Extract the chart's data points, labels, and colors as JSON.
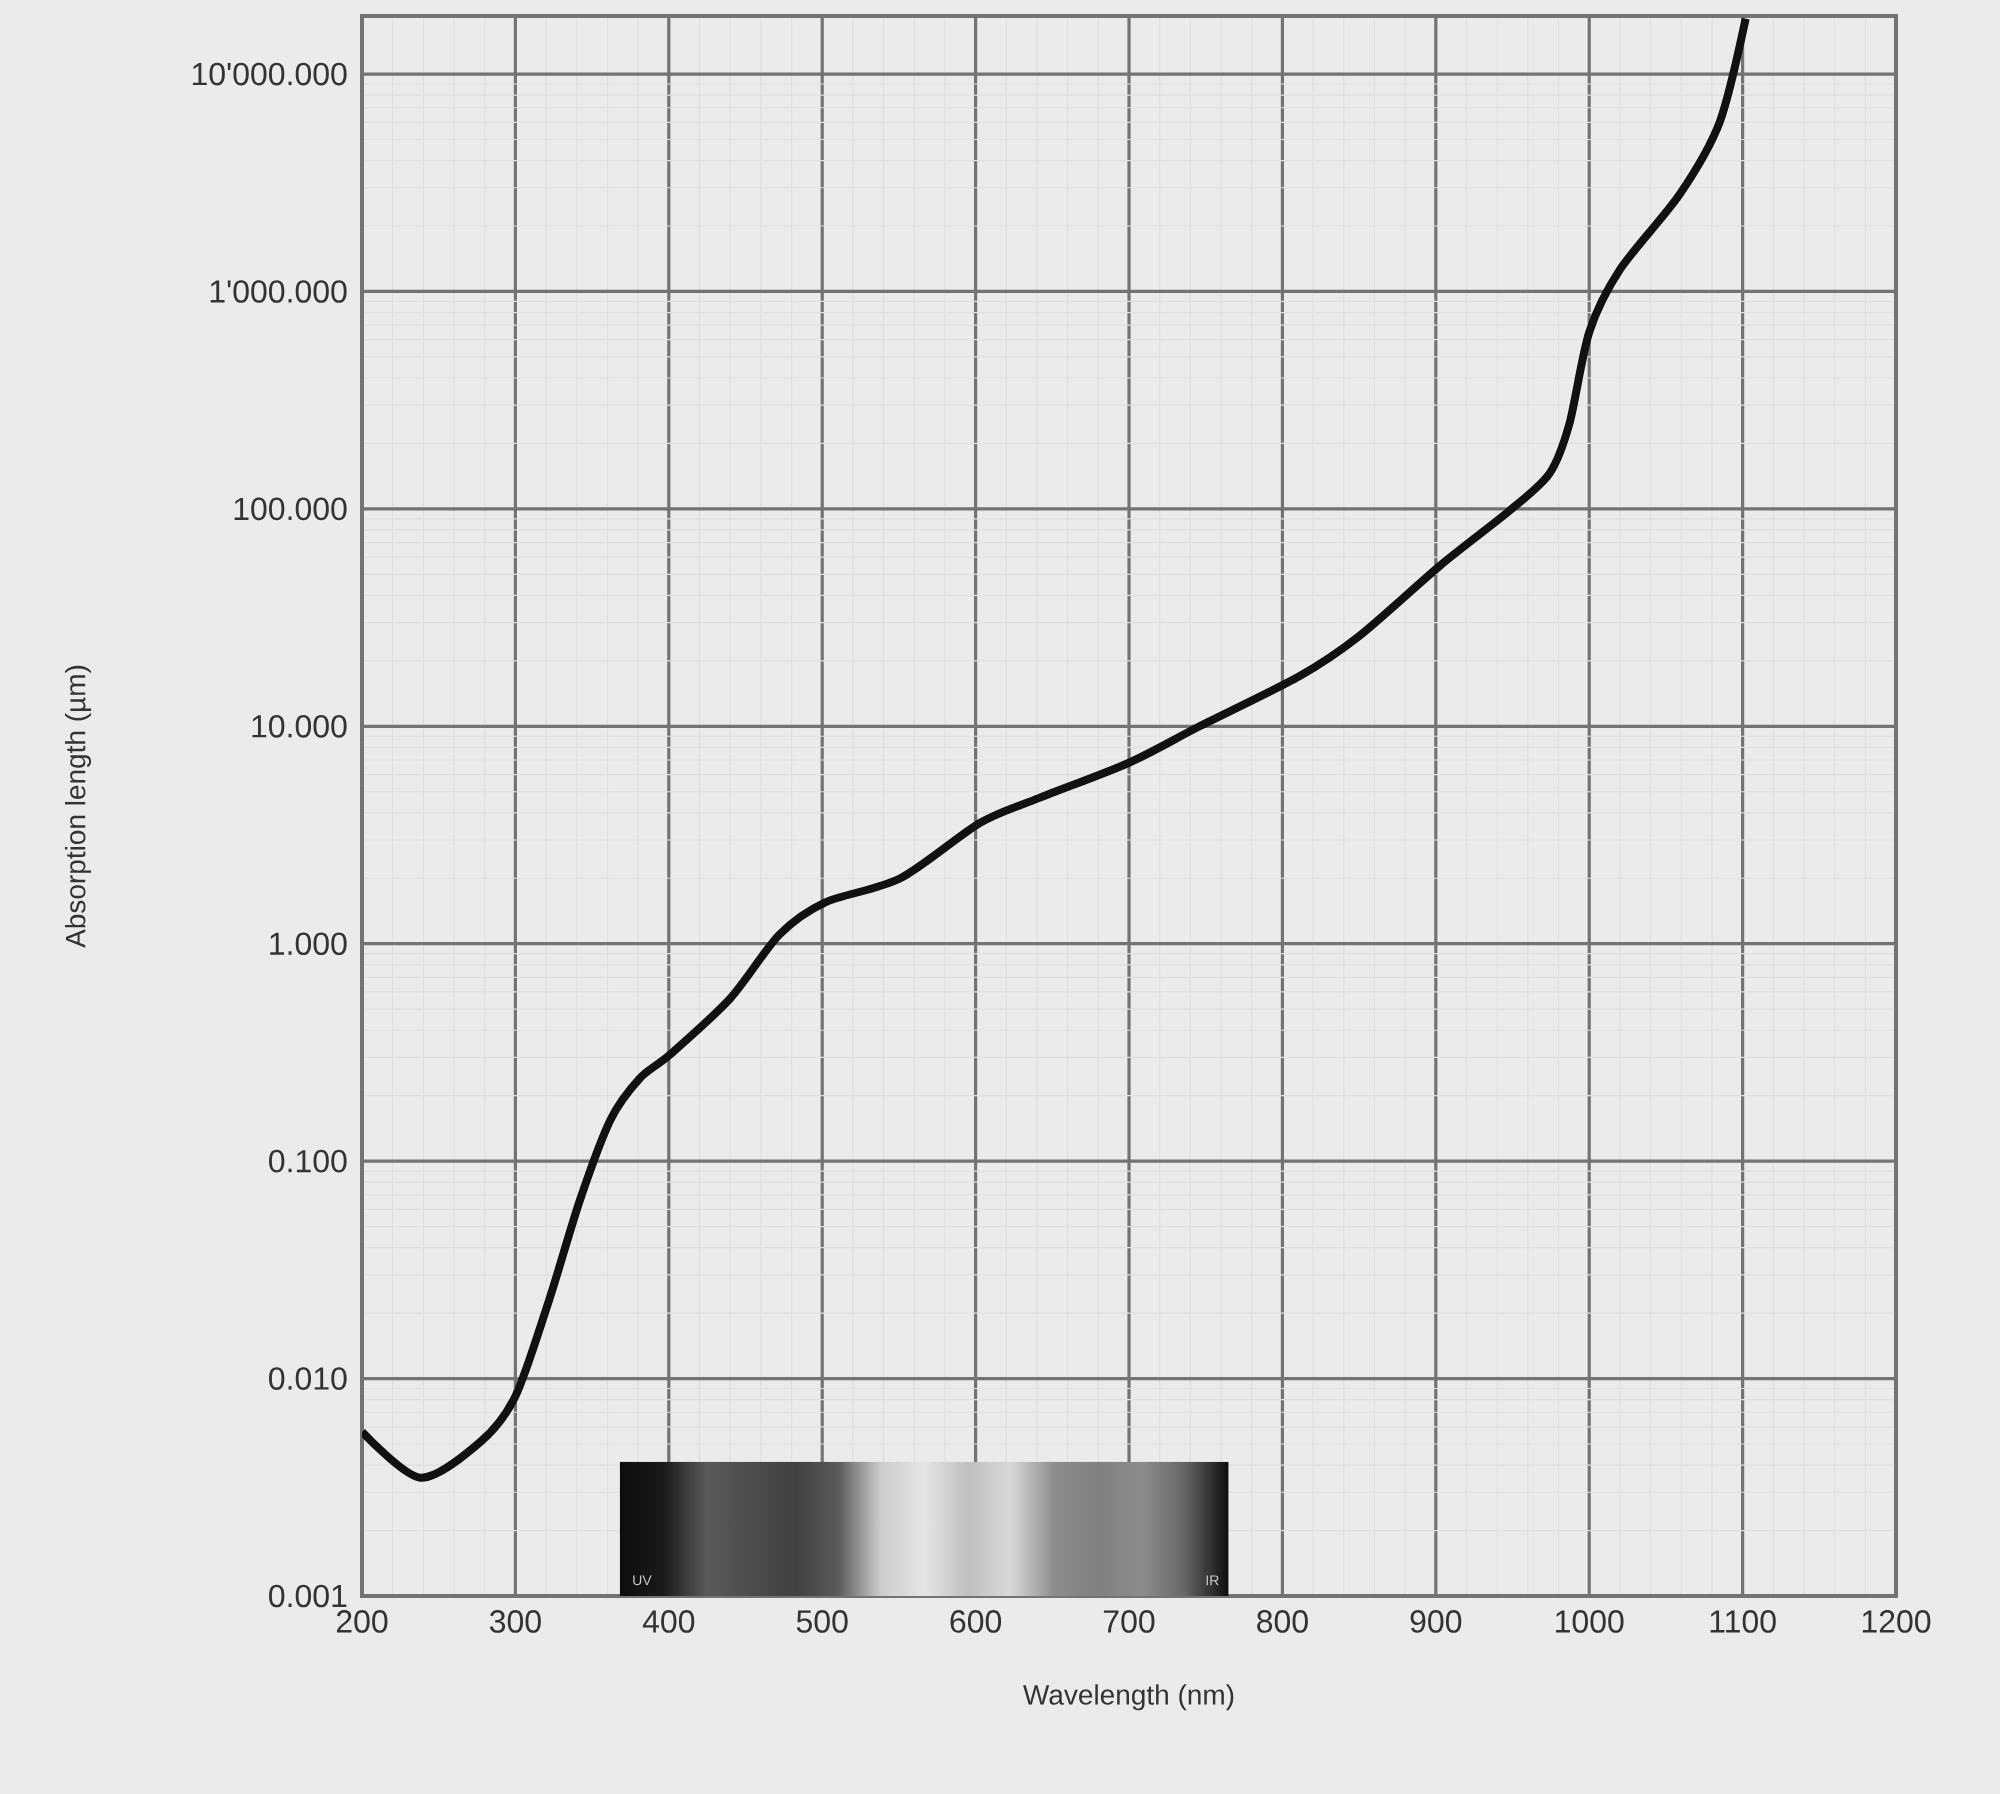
{
  "chart_data": {
    "type": "line",
    "xlabel": "Wavelength (nm)",
    "ylabel": "Absorption length (µm)",
    "log": "y",
    "grid": true,
    "xlim": [
      200,
      1200
    ],
    "xticks": [
      200,
      300,
      400,
      500,
      600,
      700,
      800,
      900,
      1000,
      1100,
      1200
    ],
    "ylim": [
      0.001,
      18500
    ],
    "yticks": [
      {
        "value": 0.001,
        "label": "0.001"
      },
      {
        "value": 0.01,
        "label": "0.010"
      },
      {
        "value": 0.1,
        "label": "0.100"
      },
      {
        "value": 1,
        "label": "1.000"
      },
      {
        "value": 10,
        "label": "10.000"
      },
      {
        "value": 100,
        "label": "100.000"
      },
      {
        "value": 1000,
        "label": "1'000.000"
      },
      {
        "value": 10000,
        "label": "10'000.000"
      }
    ],
    "annotations": [
      "UV",
      "IR"
    ],
    "bands": [
      {
        "axis": "x",
        "from": 368,
        "to": 765
      }
    ],
    "series": [
      {
        "color": "#111111",
        "x": [
          200,
          238,
          277,
          300,
          322,
          342,
          362,
          381,
          401,
          440,
          472,
          502,
          551,
          603,
          642,
          700,
          746,
          811,
          850,
          903,
          948,
          974,
          987,
          1000,
          1020,
          1059,
          1085,
          1102
        ],
        "values": [
          0.0057,
          0.0035,
          0.0051,
          0.0083,
          0.023,
          0.066,
          0.155,
          0.24,
          0.31,
          0.56,
          1.1,
          1.55,
          2.0,
          3.6,
          4.7,
          6.8,
          10,
          17,
          26,
          55,
          98,
          145,
          245,
          650,
          1260,
          2800,
          6000,
          18000
        ]
      }
    ]
  }
}
